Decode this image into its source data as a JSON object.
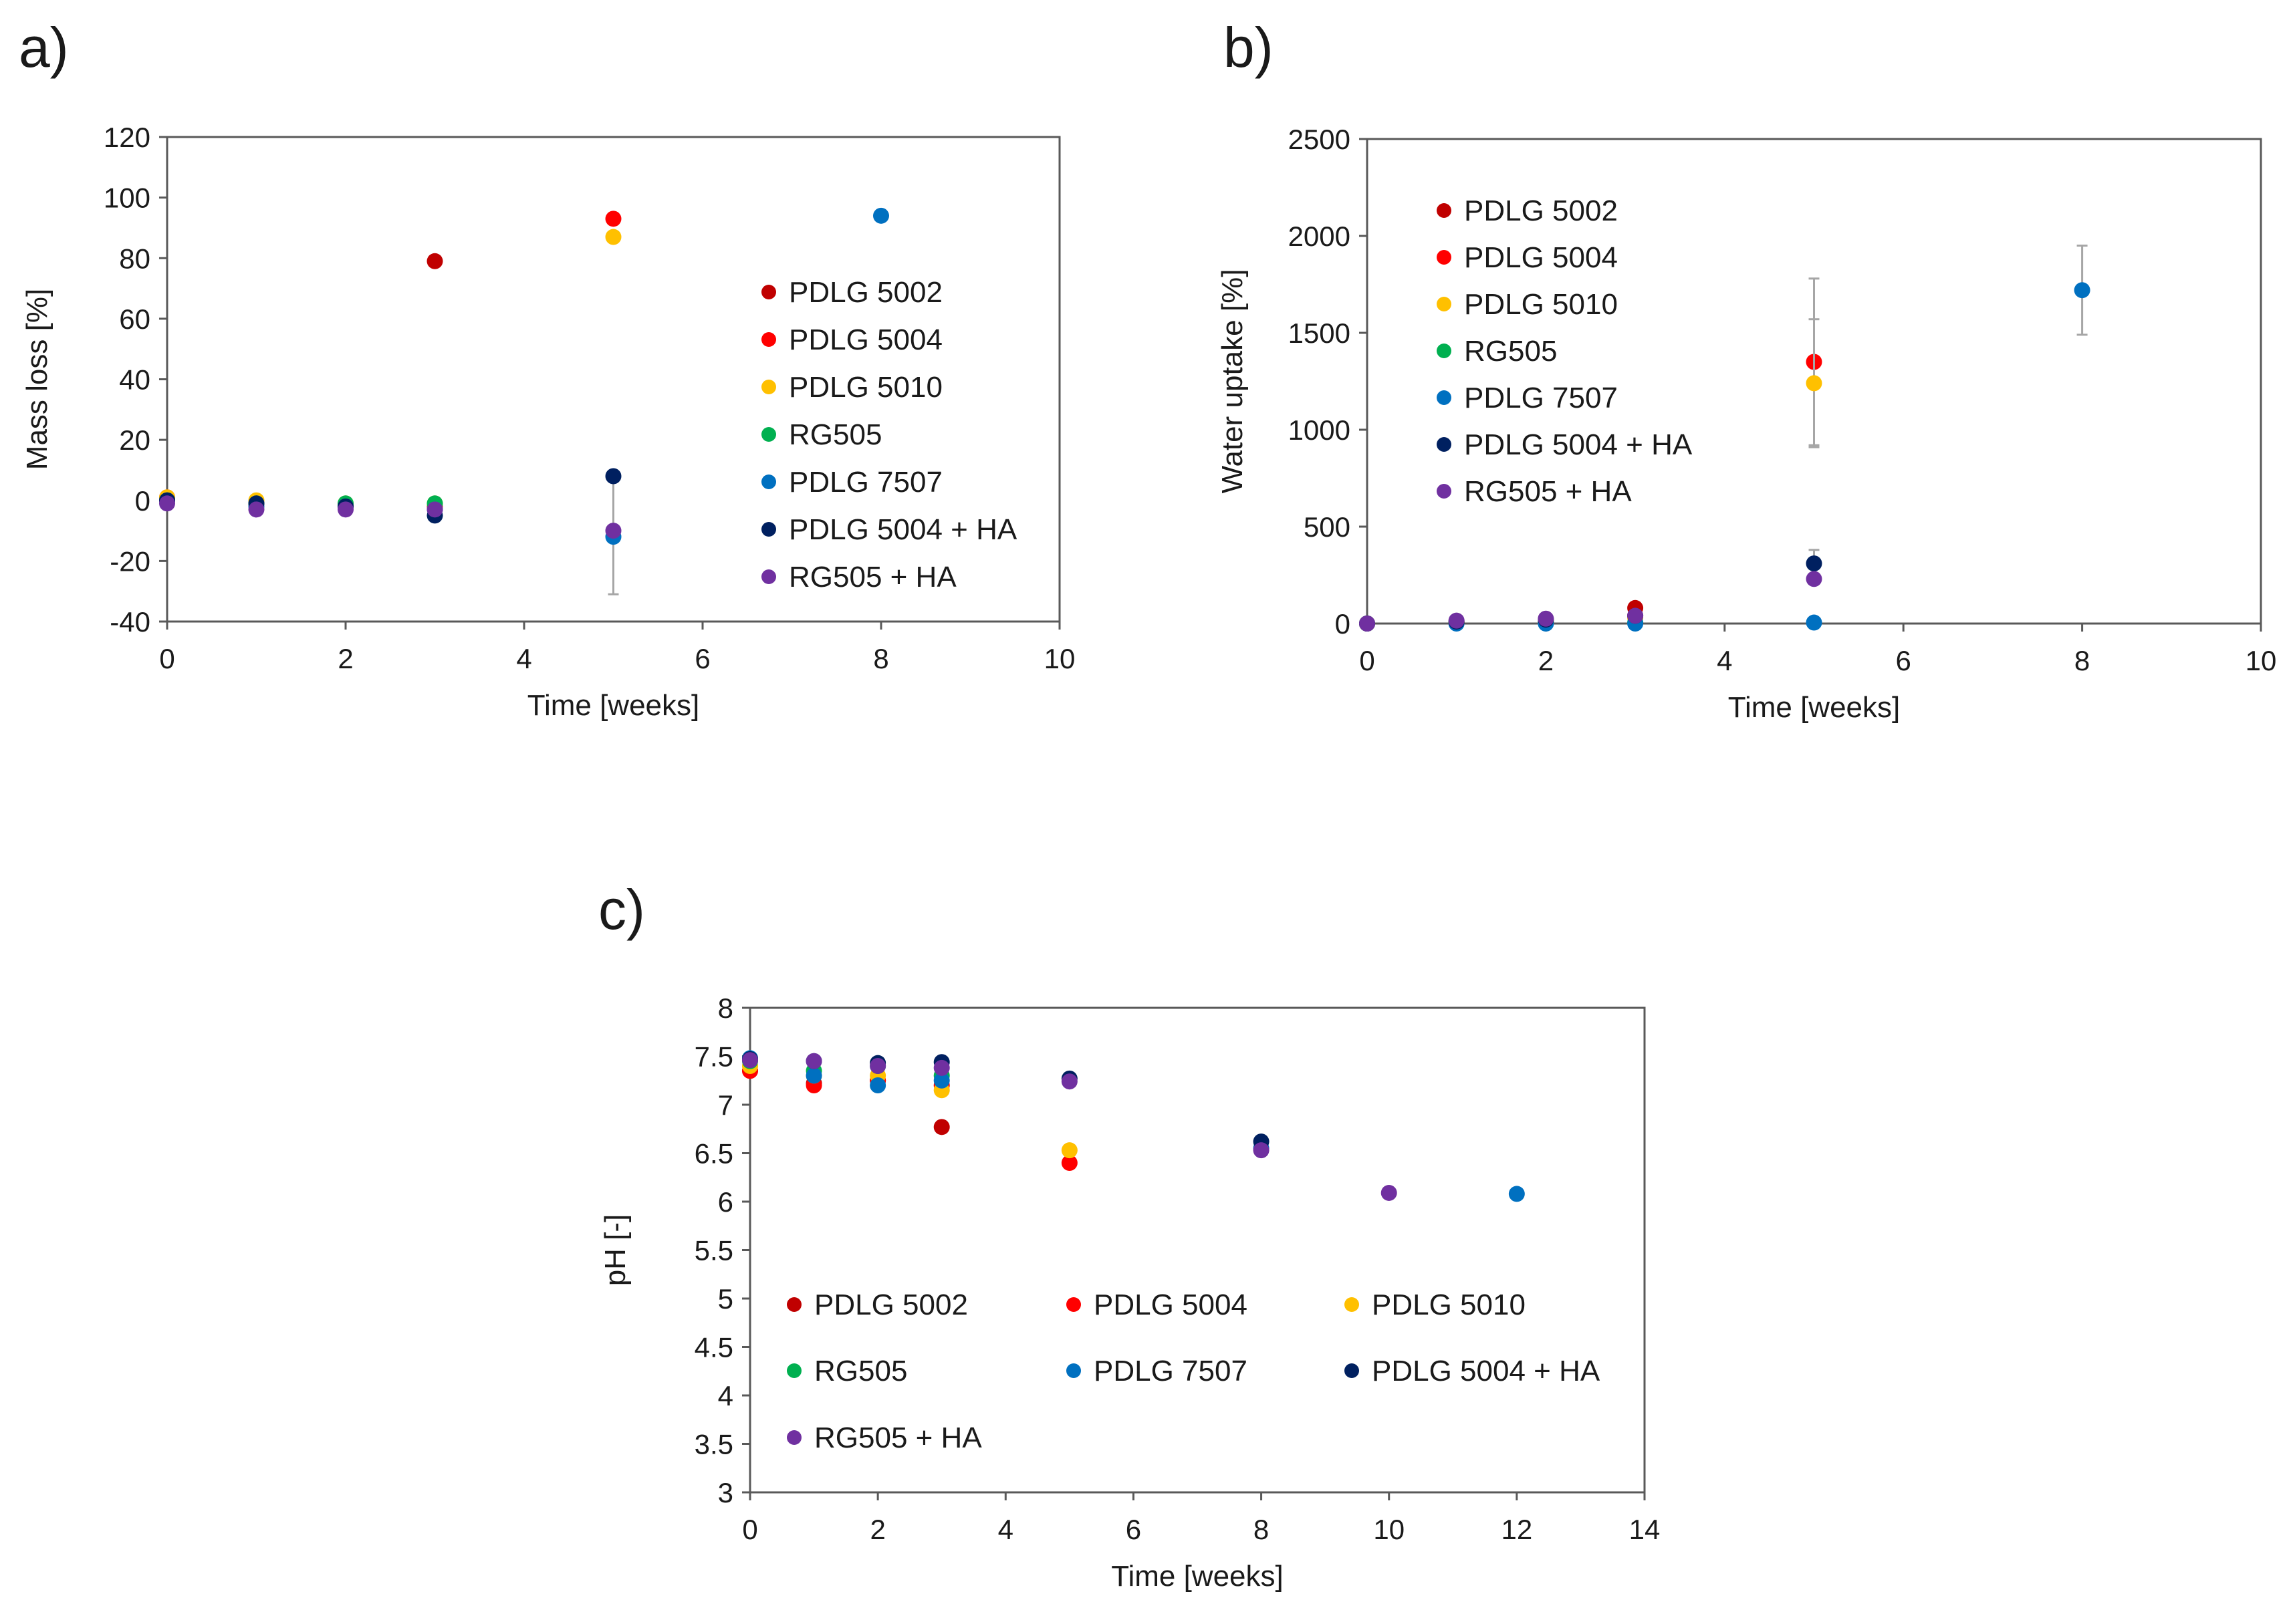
{
  "figure": {
    "colors": {
      "PDLG 5002": "#c00000",
      "PDLG 5004": "#ff0000",
      "PDLG 5010": "#ffc000",
      "RG505": "#00b050",
      "PDLG 7507": "#0070c0",
      "PDLG 5004 + HA": "#002060",
      "RG505 + HA": "#7030a0"
    },
    "error_bar_color": "#a6a6a6"
  },
  "chart_data": [
    {
      "panel": "a)",
      "type": "scatter",
      "xlabel": "Time [weeks]",
      "ylabel": "Mass loss  [%]",
      "xlim": [
        0,
        10
      ],
      "ylim": [
        -40,
        120
      ],
      "xticks": [
        0,
        2,
        4,
        6,
        8,
        10
      ],
      "yticks": [
        -40,
        -20,
        0,
        20,
        40,
        60,
        80,
        100,
        120
      ],
      "legend": "right",
      "series": [
        {
          "name": "PDLG 5002",
          "x": [
            0,
            1,
            2,
            3
          ],
          "y": [
            0,
            -1,
            -2,
            79
          ]
        },
        {
          "name": "PDLG 5004",
          "x": [
            0,
            1,
            2,
            3,
            5
          ],
          "y": [
            1,
            -1,
            -2,
            -2,
            93
          ]
        },
        {
          "name": "PDLG 5010",
          "x": [
            0,
            1,
            2,
            3,
            5
          ],
          "y": [
            1,
            0,
            -1,
            -1,
            87
          ]
        },
        {
          "name": "RG505",
          "x": [
            0,
            1,
            2,
            3
          ],
          "y": [
            0,
            -1,
            -1,
            -1
          ]
        },
        {
          "name": "PDLG 7507",
          "x": [
            0,
            1,
            2,
            3,
            5,
            8
          ],
          "y": [
            0,
            -2,
            -2,
            -3,
            -12,
            94
          ],
          "yerr": [
            0,
            0,
            0,
            0,
            19,
            0
          ]
        },
        {
          "name": "PDLG 5004 + HA",
          "x": [
            0,
            1,
            2,
            3,
            5
          ],
          "y": [
            0,
            -1,
            -2,
            -5,
            8
          ]
        },
        {
          "name": "RG505 + HA",
          "x": [
            0,
            1,
            2,
            3,
            5
          ],
          "y": [
            -1,
            -3,
            -3,
            -3,
            -10
          ]
        }
      ]
    },
    {
      "panel": "b)",
      "type": "scatter",
      "xlabel": "Time [weeks]",
      "ylabel": "Water uptake [%]",
      "xlim": [
        0,
        10
      ],
      "ylim": [
        0,
        2500
      ],
      "xticks": [
        0,
        2,
        4,
        6,
        8,
        10
      ],
      "yticks": [
        0,
        500,
        1000,
        1500,
        2000,
        2500
      ],
      "legend": "upper-left",
      "series": [
        {
          "name": "PDLG 5002",
          "x": [
            0,
            1,
            2,
            3
          ],
          "y": [
            0,
            5,
            10,
            80
          ]
        },
        {
          "name": "PDLG 5004",
          "x": [
            0,
            1,
            2,
            3,
            5
          ],
          "y": [
            0,
            5,
            10,
            40,
            1350
          ],
          "yerr": [
            0,
            0,
            0,
            0,
            430
          ]
        },
        {
          "name": "PDLG 5010",
          "x": [
            0,
            1,
            2,
            3,
            5
          ],
          "y": [
            0,
            5,
            10,
            30,
            1240
          ],
          "yerr": [
            0,
            0,
            0,
            0,
            330
          ]
        },
        {
          "name": "RG505",
          "x": [
            0,
            1,
            2,
            3
          ],
          "y": [
            0,
            3,
            5,
            5
          ]
        },
        {
          "name": "PDLG 7507",
          "x": [
            0,
            1,
            2,
            3,
            5,
            8
          ],
          "y": [
            0,
            0,
            0,
            0,
            5,
            1720
          ],
          "yerr": [
            0,
            0,
            0,
            0,
            0,
            230
          ]
        },
        {
          "name": "PDLG 5004 + HA",
          "x": [
            0,
            1,
            2,
            3,
            5
          ],
          "y": [
            0,
            10,
            20,
            40,
            310
          ],
          "yerr": [
            0,
            0,
            0,
            0,
            70
          ]
        },
        {
          "name": "RG505 + HA",
          "x": [
            0,
            1,
            2,
            3,
            5
          ],
          "y": [
            0,
            15,
            25,
            40,
            230
          ]
        }
      ]
    },
    {
      "panel": "c)",
      "type": "scatter",
      "xlabel": "Time [weeks]",
      "ylabel": "pH [-]",
      "xlim": [
        0,
        14
      ],
      "ylim": [
        3,
        8
      ],
      "xticks": [
        0,
        2,
        4,
        6,
        8,
        10,
        12,
        14
      ],
      "yticks": [
        3,
        3.5,
        4,
        4.5,
        5,
        5.5,
        6,
        6.5,
        7,
        7.5,
        8
      ],
      "legend": "bottom",
      "series": [
        {
          "name": "PDLG 5002",
          "x": [
            0,
            1,
            2,
            3
          ],
          "y": [
            7.35,
            7.22,
            7.25,
            6.77
          ]
        },
        {
          "name": "PDLG 5004",
          "x": [
            0,
            1,
            2,
            3,
            5
          ],
          "y": [
            7.35,
            7.2,
            7.25,
            7.2,
            6.4
          ]
        },
        {
          "name": "PDLG 5010",
          "x": [
            0,
            1,
            2,
            3,
            5
          ],
          "y": [
            7.4,
            7.3,
            7.3,
            7.15,
            6.53
          ]
        },
        {
          "name": "RG505",
          "x": [
            0,
            1,
            2,
            3
          ],
          "y": [
            7.45,
            7.35,
            7.4,
            7.3
          ]
        },
        {
          "name": "PDLG 7507",
          "x": [
            0,
            1,
            2,
            3,
            8,
            12
          ],
          "y": [
            7.48,
            7.3,
            7.2,
            7.25,
            6.55,
            6.08
          ]
        },
        {
          "name": "PDLG 5004 + HA",
          "x": [
            0,
            1,
            2,
            3,
            5,
            8
          ],
          "y": [
            7.47,
            7.45,
            7.43,
            7.44,
            7.27,
            6.62
          ]
        },
        {
          "name": "RG505 + HA",
          "x": [
            0,
            1,
            2,
            3,
            5,
            8,
            10
          ],
          "y": [
            7.46,
            7.45,
            7.4,
            7.38,
            7.24,
            6.53,
            6.09
          ]
        }
      ]
    }
  ]
}
